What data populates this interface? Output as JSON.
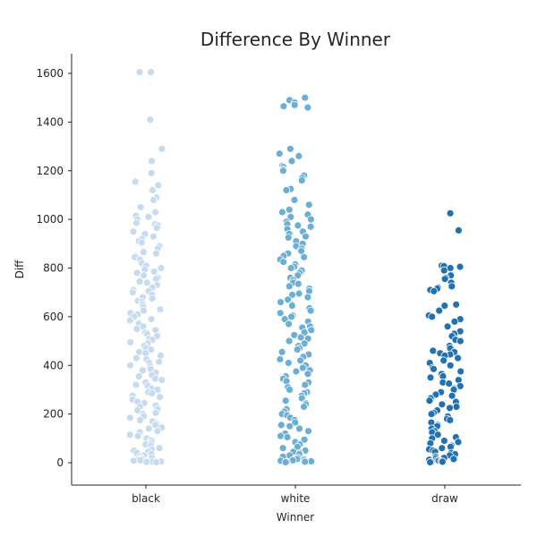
{
  "chart_data": {
    "type": "scatter",
    "title": "Difference By Winner",
    "xlabel": "Winner",
    "ylabel": "Diff",
    "ylim": [
      -90,
      1680
    ],
    "y_ticks": [
      0,
      200,
      400,
      600,
      800,
      1000,
      1200,
      1400,
      1600
    ],
    "categories": [
      "black",
      "white",
      "draw"
    ],
    "grid": false,
    "series": [
      {
        "category": "black",
        "color": "#c6dbef",
        "values": [
          1605,
          1605,
          1410,
          1290,
          1240,
          1190,
          1155,
          1140,
          1120,
          1090,
          1080,
          1050,
          1030,
          1015,
          1010,
          1000,
          985,
          980,
          975,
          965,
          950,
          940,
          930,
          920,
          910,
          905,
          890,
          880,
          870,
          865,
          860,
          850,
          845,
          835,
          820,
          810,
          800,
          795,
          785,
          780,
          770,
          760,
          755,
          745,
          740,
          730,
          720,
          710,
          705,
          700,
          690,
          680,
          675,
          665,
          660,
          650,
          640,
          630,
          625,
          615,
          610,
          600,
          590,
          585,
          575,
          570,
          560,
          550,
          545,
          535,
          530,
          520,
          510,
          505,
          495,
          490,
          480,
          470,
          465,
          455,
          450,
          440,
          430,
          425,
          415,
          410,
          400,
          395,
          385,
          380,
          370,
          360,
          355,
          345,
          340,
          330,
          320,
          315,
          305,
          300,
          290,
          285,
          275,
          270,
          260,
          250,
          245,
          235,
          230,
          220,
          215,
          205,
          200,
          190,
          185,
          175,
          170,
          160,
          155,
          145,
          140,
          130,
          125,
          115,
          110,
          100,
          95,
          90,
          80,
          75,
          70,
          60,
          55,
          50,
          45,
          40,
          35,
          30,
          25,
          20,
          18,
          15,
          12,
          10,
          8,
          6,
          5,
          4,
          3,
          2
        ]
      },
      {
        "category": "white",
        "color": "#6baed6",
        "values": [
          1500,
          1490,
          1480,
          1470,
          1465,
          1460,
          1290,
          1270,
          1260,
          1240,
          1220,
          1215,
          1205,
          1200,
          1180,
          1170,
          1160,
          1125,
          1120,
          1080,
          1060,
          1040,
          1030,
          1020,
          1010,
          1000,
          990,
          980,
          975,
          970,
          960,
          950,
          940,
          930,
          925,
          910,
          900,
          890,
          880,
          870,
          860,
          850,
          845,
          835,
          825,
          815,
          805,
          800,
          790,
          780,
          770,
          760,
          750,
          740,
          735,
          725,
          715,
          705,
          695,
          690,
          680,
          670,
          660,
          650,
          645,
          635,
          625,
          615,
          605,
          600,
          590,
          580,
          570,
          560,
          555,
          545,
          535,
          525,
          515,
          510,
          500,
          490,
          480,
          470,
          465,
          455,
          445,
          435,
          425,
          420,
          410,
          400,
          390,
          380,
          375,
          365,
          355,
          345,
          335,
          330,
          320,
          310,
          300,
          290,
          285,
          275,
          265,
          255,
          245,
          240,
          230,
          220,
          210,
          200,
          195,
          185,
          175,
          165,
          155,
          150,
          140,
          130,
          120,
          110,
          105,
          95,
          85,
          75,
          65,
          60,
          50,
          45,
          40,
          35,
          30,
          25,
          20,
          15,
          12,
          10,
          8,
          6,
          5,
          4,
          3,
          2
        ]
      },
      {
        "category": "draw",
        "color": "#2171b5",
        "values": [
          1025,
          955,
          810,
          808,
          805,
          800,
          790,
          770,
          760,
          755,
          740,
          725,
          720,
          715,
          710,
          705,
          650,
          645,
          625,
          605,
          600,
          590,
          580,
          560,
          540,
          530,
          520,
          505,
          500,
          480,
          470,
          460,
          455,
          450,
          445,
          440,
          430,
          420,
          410,
          400,
          390,
          385,
          375,
          365,
          355,
          350,
          340,
          330,
          325,
          315,
          305,
          300,
          290,
          280,
          275,
          265,
          255,
          250,
          240,
          230,
          225,
          215,
          205,
          200,
          190,
          180,
          175,
          165,
          155,
          150,
          140,
          130,
          125,
          115,
          105,
          100,
          90,
          85,
          80,
          70,
          65,
          60,
          55,
          50,
          45,
          40,
          35,
          30,
          25,
          20,
          18,
          15,
          12,
          10,
          8,
          6,
          5,
          4,
          3,
          2
        ]
      }
    ]
  }
}
